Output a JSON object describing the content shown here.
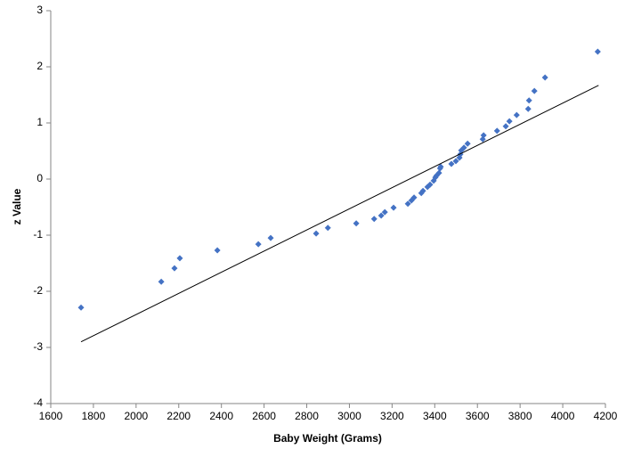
{
  "chart_data": {
    "type": "scatter",
    "x_label": "Baby Weight (Grams)",
    "y_label": "z Value",
    "xlim": [
      1600,
      4200
    ],
    "xticks": [
      1600,
      1800,
      2000,
      2200,
      2400,
      2600,
      2800,
      3000,
      3200,
      3400,
      3600,
      3800,
      4000,
      4200
    ],
    "ylim": [
      -4,
      3
    ],
    "yticks": [
      -4,
      -3,
      -2,
      -1,
      0,
      1,
      2,
      3
    ],
    "grid": false,
    "series": [
      {
        "type": "scatter",
        "color": "#4472c4",
        "x": [
          1742,
          2118,
          2180,
          2205,
          2381,
          2573,
          2631,
          2844,
          2899,
          3032,
          3116,
          3149,
          3166,
          3207,
          3274,
          3291,
          3303,
          3337,
          3345,
          3366,
          3378,
          3395,
          3403,
          3408,
          3420,
          3425,
          3428,
          3478,
          3499,
          3516,
          3520,
          3524,
          3537,
          3554,
          3625,
          3629,
          3692,
          3733,
          3750,
          3784,
          3838,
          3842,
          3867,
          3917,
          4164
        ],
        "values": [
          -2.29,
          -1.83,
          -1.59,
          -1.41,
          -1.27,
          -1.16,
          -1.05,
          -0.97,
          -0.87,
          -0.79,
          -0.71,
          -0.65,
          -0.59,
          -0.51,
          -0.44,
          -0.38,
          -0.33,
          -0.25,
          -0.21,
          -0.14,
          -0.1,
          -0.03,
          0.03,
          0.06,
          0.11,
          0.19,
          0.22,
          0.27,
          0.32,
          0.38,
          0.44,
          0.51,
          0.56,
          0.63,
          0.71,
          0.78,
          0.86,
          0.94,
          1.03,
          1.14,
          1.25,
          1.4,
          1.57,
          1.81,
          2.27
        ]
      },
      {
        "type": "line",
        "color": "#000000",
        "x": [
          1742,
          4168
        ],
        "values": [
          -2.9,
          1.67
        ]
      }
    ]
  }
}
